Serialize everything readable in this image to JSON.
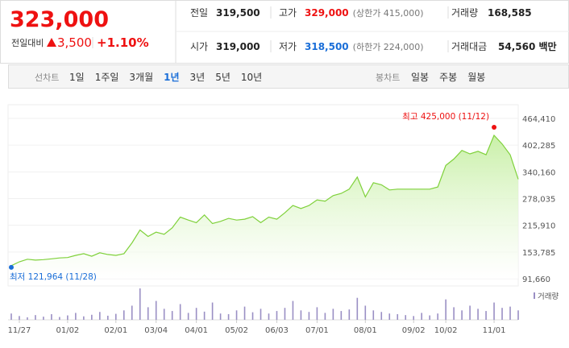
{
  "header": {
    "price": "323,000",
    "change_label": "전일대비",
    "change": "3,500",
    "change_pct": "+1.10%",
    "stats": [
      [
        {
          "label": "전일",
          "value": "319,500"
        },
        {
          "label": "고가",
          "value": "329,000",
          "note": "(상한가 415,000)"
        },
        {
          "label": "거래량",
          "value": "168,585"
        }
      ],
      [
        {
          "label": "시가",
          "value": "319,000"
        },
        {
          "label": "저가",
          "value": "318,500",
          "note": "(하한가 224,000)"
        },
        {
          "label": "거래대금",
          "value": "54,560 백만"
        }
      ]
    ]
  },
  "tabs": {
    "line_label": "선차트",
    "line": [
      "1일",
      "1주일",
      "3개월",
      "1년",
      "3년",
      "5년",
      "10년"
    ],
    "selected": "1년",
    "candle_label": "봉차트",
    "candle": [
      "일봉",
      "주봉",
      "월봉"
    ]
  },
  "chart_data": {
    "type": "area",
    "color": "#7fd13b",
    "fill": "#c9f0a8",
    "categories": [
      null,
      "11/27",
      null,
      null,
      null,
      null,
      null,
      "01/02",
      null,
      null,
      null,
      null,
      null,
      "02/01",
      null,
      null,
      null,
      null,
      "03/04",
      null,
      null,
      null,
      null,
      "04/01",
      null,
      null,
      null,
      null,
      "05/02",
      null,
      null,
      null,
      null,
      "06/03",
      null,
      null,
      null,
      null,
      "07/01",
      null,
      null,
      null,
      null,
      null,
      "08/01",
      null,
      null,
      null,
      null,
      null,
      "09/02",
      null,
      null,
      null,
      "10/02",
      null,
      null,
      null,
      null,
      null,
      "11/01",
      null,
      null,
      null
    ],
    "series": [
      {
        "name": "종가",
        "values": [
          121964,
          131000,
          137000,
          135000,
          136000,
          138000,
          140000,
          141000,
          146000,
          150000,
          144000,
          152000,
          148000,
          146000,
          150000,
          175000,
          205000,
          190000,
          200000,
          195000,
          210000,
          235000,
          228000,
          222000,
          240000,
          220000,
          225000,
          232000,
          228000,
          230000,
          236000,
          222000,
          235000,
          230000,
          245000,
          262000,
          255000,
          262000,
          275000,
          272000,
          285000,
          290000,
          300000,
          328000,
          282000,
          315000,
          310000,
          298000,
          300000,
          300000,
          300000,
          300000,
          300000,
          305000,
          355000,
          370000,
          390000,
          382000,
          388000,
          380000,
          425000,
          405000,
          380000,
          323000
        ]
      }
    ],
    "ylim": [
      91660,
      464410
    ],
    "yticks": [
      {
        "value": 91660,
        "label": "91,660"
      },
      {
        "value": 153785,
        "label": "153,785"
      },
      {
        "value": 215910,
        "label": "215,910"
      },
      {
        "value": 278035,
        "label": "278,035"
      },
      {
        "value": 340160,
        "label": "340,160"
      },
      {
        "value": 402285,
        "label": "402,285"
      },
      {
        "value": 464410,
        "label": "464,410"
      }
    ],
    "max_label": "최고 425,000 (11/12)",
    "min_label": "최저 121,964 (11/28)",
    "volume": {
      "name": "거래량",
      "color": "#9a8fc4",
      "lim": [
        0,
        100
      ],
      "values": [
        20,
        12,
        8,
        15,
        10,
        18,
        9,
        14,
        22,
        11,
        16,
        25,
        13,
        19,
        30,
        45,
        100,
        40,
        60,
        35,
        28,
        50,
        22,
        38,
        26,
        55,
        20,
        18,
        30,
        42,
        24,
        35,
        20,
        28,
        38,
        60,
        30,
        25,
        40,
        22,
        35,
        28,
        33,
        70,
        45,
        30,
        25,
        20,
        18,
        15,
        12,
        22,
        14,
        20,
        65,
        40,
        30,
        45,
        35,
        28,
        55,
        38,
        42,
        30
      ]
    }
  }
}
